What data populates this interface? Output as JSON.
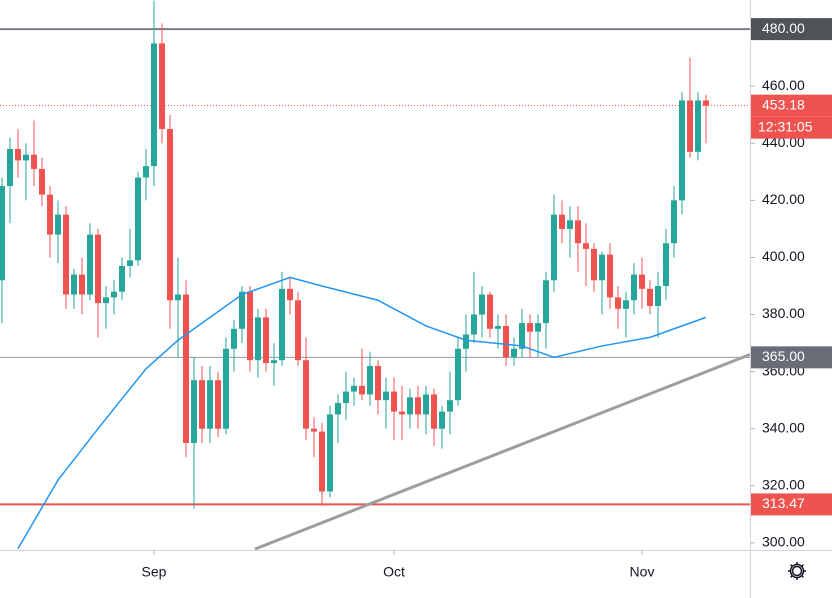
{
  "chart_data": {
    "type": "candlestick",
    "up_color": "#26a69a",
    "down_color": "#ef5350",
    "open": [
      392,
      425,
      438,
      434,
      436,
      431,
      422,
      408,
      415,
      387,
      394,
      387,
      408,
      384,
      386,
      388,
      397,
      399,
      428,
      432,
      475,
      445,
      385,
      387,
      335,
      357,
      340,
      357,
      340,
      368,
      375,
      388,
      364,
      379,
      363,
      364,
      389,
      385,
      364,
      340,
      339,
      318,
      345,
      349,
      353,
      355,
      352,
      362,
      350,
      353,
      346,
      345,
      351,
      345,
      352,
      340,
      346,
      350,
      368,
      373,
      380,
      387,
      375,
      376,
      365,
      368,
      377,
      374,
      377,
      392,
      415,
      410,
      413,
      405,
      403,
      392,
      401,
      386,
      382,
      385,
      394,
      389,
      383,
      390,
      405,
      420,
      455,
      437,
      455
    ],
    "high": [
      428,
      442,
      445,
      440,
      448,
      435,
      425,
      420,
      418,
      396,
      400,
      412,
      410,
      390,
      392,
      400,
      410,
      430,
      438,
      490,
      482,
      450,
      400,
      392,
      365,
      362,
      362,
      360,
      372,
      378,
      390,
      390,
      382,
      382,
      370,
      395,
      393,
      388,
      372,
      344,
      342,
      348,
      352,
      360,
      358,
      368,
      367,
      364,
      358,
      358,
      355,
      354,
      355,
      355,
      354,
      348,
      360,
      372,
      380,
      395,
      390,
      388,
      380,
      380,
      372,
      382,
      380,
      380,
      395,
      422,
      420,
      418,
      418,
      412,
      405,
      402,
      405,
      390,
      388,
      398,
      400,
      392,
      395,
      410,
      425,
      458,
      470,
      458,
      457
    ],
    "low": [
      377,
      412,
      428,
      420,
      425,
      418,
      400,
      398,
      382,
      382,
      380,
      385,
      372,
      375,
      380,
      385,
      393,
      397,
      420,
      425,
      440,
      375,
      365,
      330,
      312,
      335,
      335,
      337,
      338,
      360,
      370,
      360,
      358,
      360,
      355,
      362,
      380,
      362,
      336,
      330,
      313,
      316,
      335,
      343,
      348,
      350,
      348,
      345,
      340,
      336,
      336,
      340,
      340,
      338,
      334,
      333,
      338,
      348,
      360,
      370,
      372,
      372,
      368,
      362,
      362,
      365,
      365,
      365,
      368,
      388,
      405,
      400,
      395,
      390,
      388,
      380,
      382,
      375,
      372,
      380,
      382,
      380,
      372,
      385,
      400,
      415,
      435,
      434,
      440
    ],
    "close": [
      425,
      438,
      434,
      436,
      431,
      422,
      408,
      415,
      387,
      394,
      387,
      408,
      384,
      386,
      388,
      397,
      399,
      428,
      432,
      475,
      445,
      385,
      387,
      335,
      357,
      340,
      357,
      340,
      368,
      375,
      388,
      364,
      379,
      363,
      364,
      389,
      385,
      364,
      340,
      339,
      318,
      345,
      349,
      353,
      355,
      352,
      362,
      350,
      353,
      346,
      345,
      351,
      345,
      352,
      340,
      346,
      350,
      368,
      373,
      380,
      387,
      375,
      376,
      365,
      368,
      377,
      374,
      377,
      392,
      415,
      410,
      413,
      405,
      403,
      392,
      401,
      386,
      382,
      385,
      394,
      389,
      383,
      390,
      405,
      420,
      455,
      437,
      455,
      453.18
    ],
    "xlim": [
      -0.25,
      93.5
    ],
    "xticks": [
      {
        "value": 19,
        "label": "Sep"
      },
      {
        "value": 49,
        "label": "Oct"
      },
      {
        "value": 80,
        "label": "Nov"
      }
    ],
    "ylim": [
      297.5,
      490.2
    ],
    "yticks": [
      {
        "value": 300,
        "label": "300.00"
      },
      {
        "value": 320,
        "label": "320.00"
      },
      {
        "value": 340,
        "label": "340.00"
      },
      {
        "value": 360,
        "label": "360.00"
      },
      {
        "value": 380,
        "label": "380.00"
      },
      {
        "value": 400,
        "label": "400.00"
      },
      {
        "value": 420,
        "label": "420.00"
      },
      {
        "value": 440,
        "label": "440.00"
      },
      {
        "value": 460,
        "label": "460.00"
      }
    ],
    "moving_average": {
      "color": "#2196f3",
      "x": [
        2,
        7,
        12,
        18,
        22,
        30,
        36,
        40,
        47,
        53,
        58,
        65,
        69,
        75,
        81,
        88
      ],
      "values": [
        298,
        322,
        340,
        361,
        371,
        387,
        393,
        390,
        385,
        376,
        371,
        369,
        365,
        369,
        372,
        379
      ]
    },
    "trendline": {
      "color": "#9e9e9e",
      "x": [
        31.6,
        93.5
      ],
      "values": [
        297.8,
        366
      ]
    },
    "hlines": [
      {
        "value": 480,
        "label": "480.00",
        "color": "#787b86",
        "label_color": "#4f5257"
      },
      {
        "value": 365,
        "label": "365.00",
        "color": "#9598a1",
        "label_color": "#6a6d78"
      },
      {
        "value": 313.47,
        "label": "313.47",
        "color": "#ef5350",
        "label_color": "#ef5350"
      }
    ],
    "last_price": {
      "value": 453.18,
      "label": "453.18",
      "countdown": "12:31:05",
      "color": "#ef5350"
    }
  }
}
